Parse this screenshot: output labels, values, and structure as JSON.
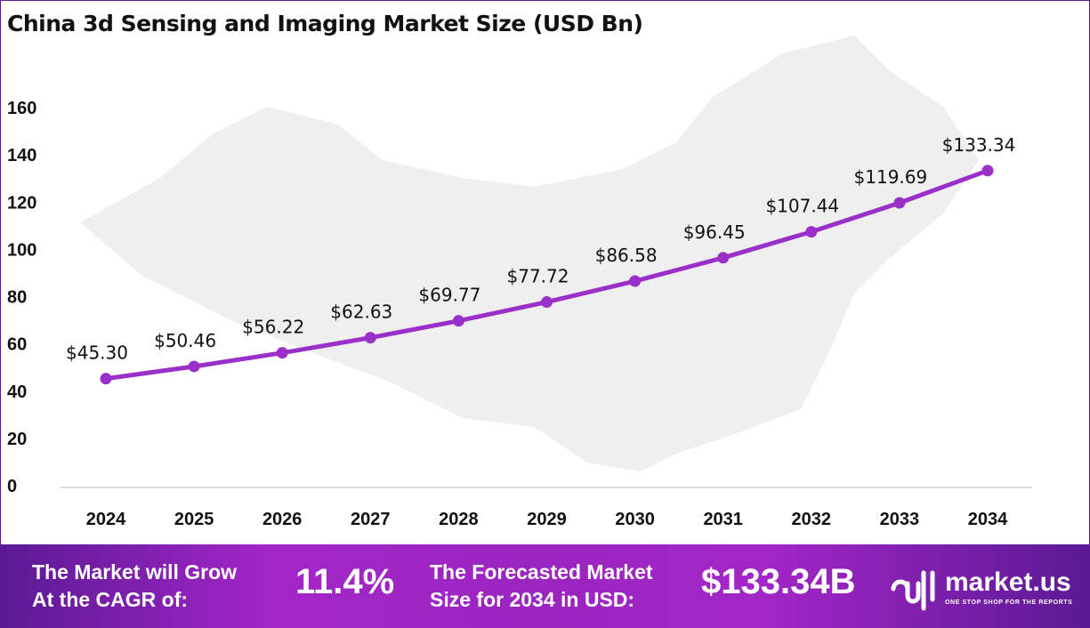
{
  "chart_data": {
    "type": "line",
    "title": "China 3d Sensing and Imaging Market Size (USD Bn)",
    "categories": [
      "2024",
      "2025",
      "2026",
      "2027",
      "2028",
      "2029",
      "2030",
      "2031",
      "2032",
      "2033",
      "2034"
    ],
    "values": [
      45.3,
      50.46,
      56.22,
      62.63,
      69.77,
      77.72,
      86.58,
      96.45,
      107.44,
      119.69,
      133.34
    ],
    "data_labels": [
      "$45.30",
      "$50.46",
      "$56.22",
      "$62.63",
      "$69.77",
      "$77.72",
      "$86.58",
      "$96.45",
      "$107.44",
      "$119.69",
      "$133.34"
    ],
    "ylim": [
      0,
      160
    ],
    "yticks": [
      0,
      20,
      40,
      60,
      80,
      100,
      120,
      140,
      160
    ],
    "grid": false,
    "line_color": "#9b2fc9"
  },
  "footer": {
    "cagr_label_1": "The Market will Grow",
    "cagr_label_2": "At the CAGR of:",
    "cagr_value": "11.4%",
    "forecast_label_1": "The Forecasted Market",
    "forecast_label_2": "Size for 2034 in USD:",
    "forecast_value": "$133.34B",
    "brand": "market.us",
    "tagline": "ONE STOP SHOP FOR THE REPORTS"
  }
}
